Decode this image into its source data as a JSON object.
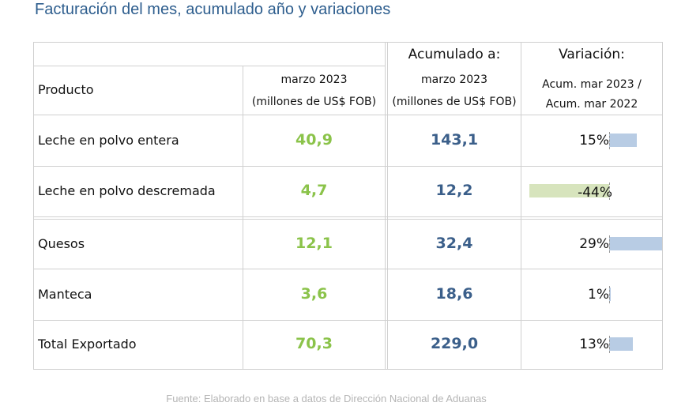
{
  "title": "Facturación del mes, acumulado año y variaciones",
  "table": {
    "header": {
      "product_label": "Producto",
      "col_month_line1": "marzo 2023",
      "col_month_line2": "(millones de US$ FOB)",
      "col_acum_top": "Acumulado a:",
      "col_acum_line1": "marzo 2023",
      "col_acum_line2": "(millones de US$ FOB)",
      "col_var_top": "Variación:",
      "col_var_line1": "Acum. mar 2023 /",
      "col_var_line2": "Acum. mar 2022"
    },
    "rows": [
      {
        "product": "Leche en polvo entera",
        "month": "40,9",
        "acum": "143,1",
        "variation_label": "15%",
        "variation_value": 15
      },
      {
        "product": "Leche en polvo descremada",
        "month": "4,7",
        "acum": "12,2",
        "variation_label": "-44%",
        "variation_value": -44
      },
      {
        "product": "Quesos",
        "month": "12,1",
        "acum": "32,4",
        "variation_label": "29%",
        "variation_value": 29
      },
      {
        "product": "Manteca",
        "month": "3,6",
        "acum": "18,6",
        "variation_label": "1%",
        "variation_value": 1
      },
      {
        "product": "Total Exportado",
        "month": "70,3",
        "acum": "229,0",
        "variation_label": "13%",
        "variation_value": 13
      }
    ]
  },
  "colors": {
    "title": "#2e5e8e",
    "month_values": "#8bc34a",
    "acum_values": "#3b5f8a",
    "positive_bar": "#b8cce4",
    "negative_bar": "#d7e4bd",
    "footer": "#b5b5b5"
  },
  "footer": "Fuente: Elaborado en base a datos de Dirección Nacional de Aduanas"
}
